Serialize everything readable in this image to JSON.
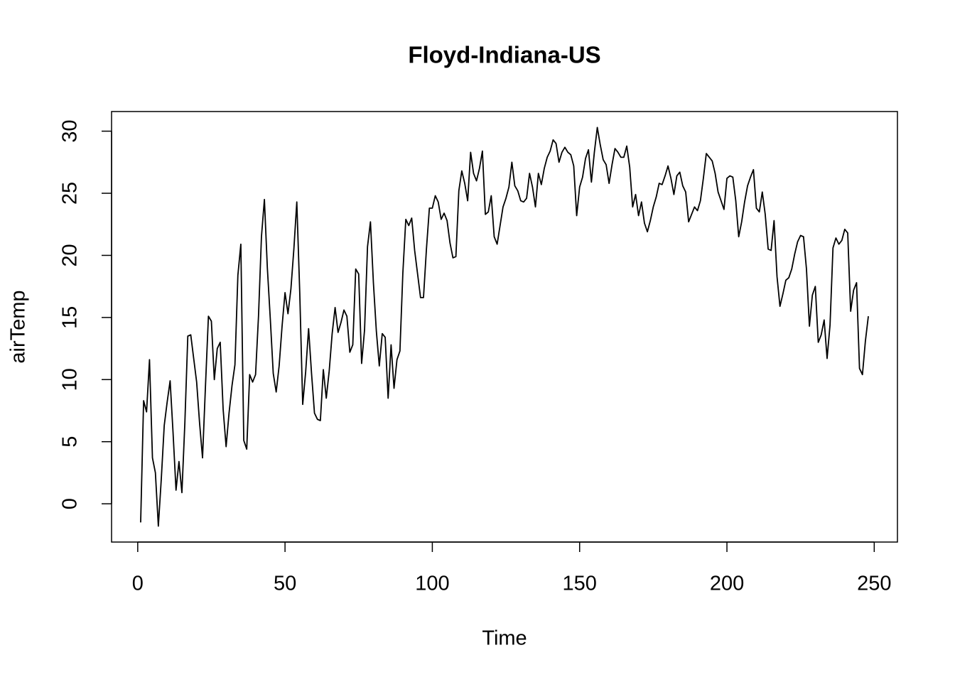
{
  "chart_data": {
    "type": "line",
    "title": "Floyd-Indiana-US",
    "xlabel": "Time",
    "ylabel": "airTemp",
    "x": [
      1,
      2,
      3,
      4,
      5,
      6,
      7,
      8,
      9,
      10,
      11,
      12,
      13,
      14,
      15,
      16,
      17,
      18,
      19,
      20,
      21,
      22,
      23,
      24,
      25,
      26,
      27,
      28,
      29,
      30,
      31,
      32,
      33,
      34,
      35,
      36,
      37,
      38,
      39,
      40,
      41,
      42,
      43,
      44,
      45,
      46,
      47,
      48,
      49,
      50,
      51,
      52,
      53,
      54,
      55,
      56,
      57,
      58,
      59,
      60,
      61,
      62,
      63,
      64,
      65,
      66,
      67,
      68,
      69,
      70,
      71,
      72,
      73,
      74,
      75,
      76,
      77,
      78,
      79,
      80,
      81,
      82,
      83,
      84,
      85,
      86,
      87,
      88,
      89,
      90,
      91,
      92,
      93,
      94,
      95,
      96,
      97,
      98,
      99,
      100,
      101,
      102,
      103,
      104,
      105,
      106,
      107,
      108,
      109,
      110,
      111,
      112,
      113,
      114,
      115,
      116,
      117,
      118,
      119,
      120,
      121,
      122,
      123,
      124,
      125,
      126,
      127,
      128,
      129,
      130,
      131,
      132,
      133,
      134,
      135,
      136,
      137,
      138,
      139,
      140,
      141,
      142,
      143,
      144,
      145,
      146,
      147,
      148,
      149,
      150,
      151,
      152,
      153,
      154,
      155,
      156,
      157,
      158,
      159,
      160,
      161,
      162,
      163,
      164,
      165,
      166,
      167,
      168,
      169,
      170,
      171,
      172,
      173,
      174,
      175,
      176,
      177,
      178,
      179,
      180,
      181,
      182,
      183,
      184,
      185,
      186,
      187,
      188,
      189,
      190,
      191,
      192,
      193,
      194,
      195,
      196,
      197,
      198,
      199,
      200,
      201,
      202,
      203,
      204,
      205,
      206,
      207,
      208,
      209,
      210,
      211,
      212,
      213,
      214,
      215,
      216,
      217,
      218,
      219,
      220,
      221,
      222,
      223,
      224,
      225,
      226,
      227,
      228,
      229,
      230,
      231,
      232,
      233,
      234,
      235,
      236,
      237,
      238,
      239,
      240,
      241,
      242,
      243,
      244,
      245,
      246,
      247,
      248
    ],
    "series": [
      {
        "color": "#000000",
        "values": [
          -1.5,
          8.3,
          7.4,
          11.6,
          3.7,
          2.5,
          -1.8,
          2,
          6.3,
          8.2,
          9.9,
          5.7,
          1.1,
          3.4,
          0.9,
          6.5,
          13.5,
          13.6,
          11.7,
          9.8,
          6.5,
          3.7,
          9.5,
          15.1,
          14.7,
          10,
          12.5,
          13,
          7.6,
          4.6,
          7.3,
          9.5,
          11.2,
          18.4,
          20.9,
          5.1,
          4.4,
          10.4,
          9.8,
          10.4,
          15.1,
          21.5,
          24.5,
          19,
          14.9,
          10.5,
          9,
          11.1,
          14.3,
          17,
          15.3,
          17.3,
          20.5,
          24.3,
          17,
          8,
          10.6,
          14.1,
          10.5,
          7.3,
          6.8,
          6.7,
          10.8,
          8.5,
          10.7,
          13.7,
          15.8,
          13.8,
          14.6,
          15.6,
          15.1,
          12.2,
          12.8,
          18.9,
          18.5,
          11.3,
          14,
          20.7,
          22.7,
          17.8,
          13.9,
          11.1,
          13.7,
          13.4,
          8.5,
          12.8,
          9.3,
          11.6,
          12.3,
          18.6,
          22.9,
          22.4,
          23,
          20.4,
          18.5,
          16.6,
          16.6,
          20.5,
          23.8,
          23.8,
          24.8,
          24.3,
          22.9,
          23.4,
          22.8,
          21,
          19.8,
          19.9,
          25.2,
          26.8,
          25.8,
          24.4,
          28.3,
          26.6,
          26,
          27,
          28.4,
          23.3,
          23.5,
          24.8,
          21.5,
          20.9,
          22.4,
          23.9,
          24.6,
          25.5,
          27.5,
          25.6,
          25.2,
          24.4,
          24.3,
          24.6,
          26.6,
          25.5,
          23.9,
          26.6,
          25.7,
          27,
          27.9,
          28.4,
          29.3,
          29,
          27.5,
          28.3,
          28.7,
          28.3,
          28.1,
          27.2,
          23.2,
          25.5,
          26.3,
          27.8,
          28.5,
          25.9,
          28.3,
          30.3,
          28.9,
          27.7,
          27.3,
          25.8,
          27.3,
          28.6,
          28.3,
          27.9,
          27.9,
          28.8,
          27.1,
          23.9,
          24.9,
          23.2,
          24.3,
          22.6,
          21.9,
          22.8,
          23.9,
          24.7,
          25.8,
          25.7,
          26.4,
          27.2,
          26.2,
          24.9,
          26.4,
          26.7,
          25.6,
          25.1,
          22.7,
          23.3,
          23.9,
          23.6,
          24.4,
          26.2,
          28.2,
          27.9,
          27.6,
          26.6,
          25.1,
          24.4,
          23.7,
          26.2,
          26.4,
          26.3,
          24.4,
          21.5,
          22.7,
          24.3,
          25.6,
          26.3,
          26.9,
          23.8,
          23.5,
          25.1,
          23.3,
          20.5,
          20.4,
          22.8,
          18.3,
          15.9,
          16.9,
          18,
          18.2,
          18.9,
          20.1,
          21.1,
          21.6,
          21.5,
          18.9,
          14.3,
          16.8,
          17.5,
          13,
          13.6,
          14.8,
          11.7,
          14.4,
          20.6,
          21.4,
          20.9,
          21.2,
          22.1,
          21.8,
          15.5,
          17.2,
          17.8,
          10.9,
          10.4,
          13.1,
          15.1
        ]
      }
    ],
    "xlim": [
      -8.88,
      257.88
    ],
    "xticks": [
      0,
      50,
      100,
      150,
      200,
      250
    ],
    "ylim": [
      -3.08,
      31.58
    ],
    "yticks": [
      0,
      5,
      10,
      15,
      20,
      25,
      30
    ]
  }
}
